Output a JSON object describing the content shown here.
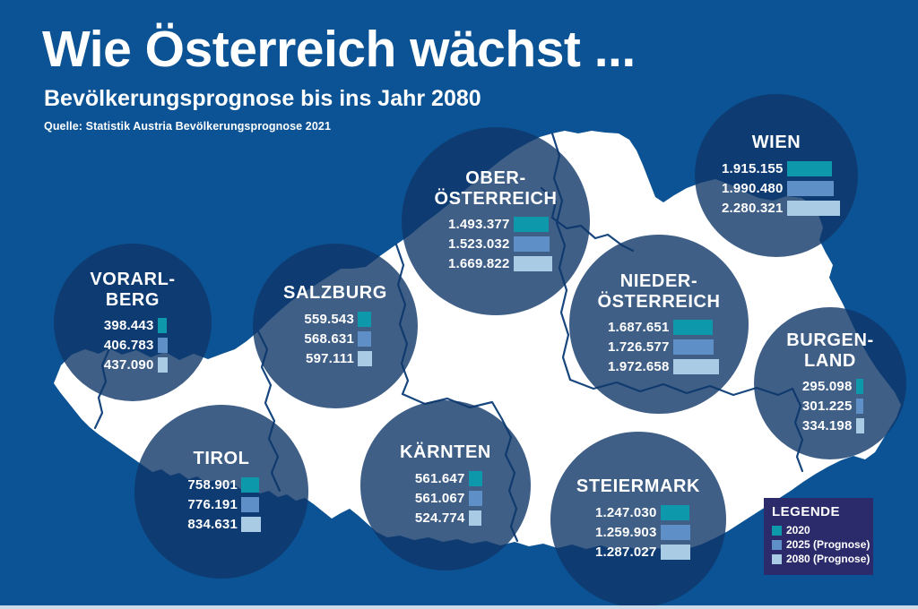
{
  "header": {
    "title": "Wie Österreich wächst ...",
    "subtitle": "Bevölkerungsprognose bis ins Jahr 2080",
    "source": "Quelle: Statistik Austria Bevölkerungsprognose 2021"
  },
  "legend": {
    "title": "LEGENDE",
    "items": [
      {
        "label": "2020",
        "color": "#0E98AC"
      },
      {
        "label": "2025 (Prognose)",
        "color": "#5E8FC6"
      },
      {
        "label": "2080 (Prognose)",
        "color": "#A9CBE4"
      }
    ]
  },
  "colors": {
    "background": "#0B5394",
    "map_fill": "#FFFFFF",
    "map_border": "#17477E",
    "circle_overlay": "rgba(15,55,105,0.80)",
    "legend_box": "#2B2B6B",
    "bottom_strip": "#CBDCEB"
  },
  "chart_data": {
    "type": "bar",
    "title": "Wie Österreich wächst ...",
    "subtitle": "Bevölkerungsprognose bis ins Jahr 2080",
    "series_labels": [
      "2020",
      "2025 (Prognose)",
      "2080 (Prognose)"
    ],
    "regions": [
      {
        "id": "wien",
        "name": "WIEN",
        "name_lines": [
          "WIEN"
        ],
        "labels": [
          "1.915.155",
          "1.990.480",
          "2.280.321"
        ],
        "values": [
          1915155,
          1990480,
          2280321
        ]
      },
      {
        "id": "oberoesterreich",
        "name": "OBER-ÖSTERREICH",
        "name_lines": [
          "OBER-",
          "ÖSTERREICH"
        ],
        "labels": [
          "1.493.377",
          "1.523.032",
          "1.669.822"
        ],
        "values": [
          1493377,
          1523032,
          1669822
        ]
      },
      {
        "id": "niederoesterreich",
        "name": "NIEDER-ÖSTERREICH",
        "name_lines": [
          "NIEDER-",
          "ÖSTERREICH"
        ],
        "labels": [
          "1.687.651",
          "1.726.577",
          "1.972.658"
        ],
        "values": [
          1687651,
          1726577,
          1972658
        ]
      },
      {
        "id": "burgenland",
        "name": "BURGEN-LAND",
        "name_lines": [
          "BURGEN-",
          "LAND"
        ],
        "labels": [
          "295.098",
          "301.225",
          "334.198"
        ],
        "values": [
          295098,
          301225,
          334198
        ]
      },
      {
        "id": "vorarlberg",
        "name": "VORARL-BERG",
        "name_lines": [
          "VORARL-",
          "BERG"
        ],
        "labels": [
          "398.443",
          "406.783",
          "437.090"
        ],
        "values": [
          398443,
          406783,
          437090
        ]
      },
      {
        "id": "salzburg",
        "name": "SALZBURG",
        "name_lines": [
          "SALZBURG"
        ],
        "labels": [
          "559.543",
          "568.631",
          "597.111"
        ],
        "values": [
          559543,
          568631,
          597111
        ]
      },
      {
        "id": "tirol",
        "name": "TIROL",
        "name_lines": [
          "TIROL"
        ],
        "labels": [
          "758.901",
          "776.191",
          "834.631"
        ],
        "values": [
          758901,
          776191,
          834631
        ]
      },
      {
        "id": "kaernten",
        "name": "KÄRNTEN",
        "name_lines": [
          "KÄRNTEN"
        ],
        "labels": [
          "561.647",
          "561.067",
          "524.774"
        ],
        "values": [
          561647,
          561067,
          524774
        ]
      },
      {
        "id": "steiermark",
        "name": "STEIERMARK",
        "name_lines": [
          "STEIERMARK"
        ],
        "labels": [
          "1.247.030",
          "1.259.903",
          "1.287.027"
        ],
        "values": [
          1247030,
          1259903,
          1287027
        ]
      }
    ]
  }
}
